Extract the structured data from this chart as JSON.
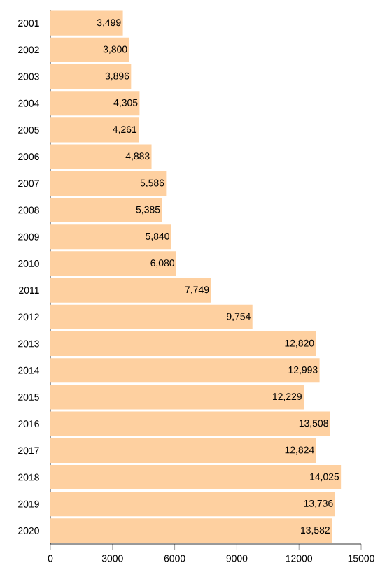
{
  "chart_data": {
    "type": "bar",
    "orientation": "horizontal",
    "categories": [
      "2001",
      "2002",
      "2003",
      "2004",
      "2005",
      "2006",
      "2007",
      "2008",
      "2009",
      "2010",
      "2011",
      "2012",
      "2013",
      "2014",
      "2015",
      "2016",
      "2017",
      "2018",
      "2019",
      "2020"
    ],
    "values": [
      3499,
      3800,
      3896,
      4305,
      4261,
      4883,
      5586,
      5385,
      5840,
      6080,
      7749,
      9754,
      12820,
      12993,
      12229,
      13508,
      12824,
      14025,
      13736,
      13582
    ],
    "value_labels": [
      "3,499",
      "3,800",
      "3,896",
      "4,305",
      "4,261",
      "4,883",
      "5,586",
      "5,385",
      "5,840",
      "6,080",
      "7,749",
      "9,754",
      "12,820",
      "12,993",
      "12,229",
      "13,508",
      "12,824",
      "14,025",
      "13,736",
      "13,582"
    ],
    "color": "#fed0a0",
    "xlim": [
      0,
      15000
    ],
    "xticks": [
      0,
      3000,
      6000,
      9000,
      12000,
      15000
    ]
  }
}
